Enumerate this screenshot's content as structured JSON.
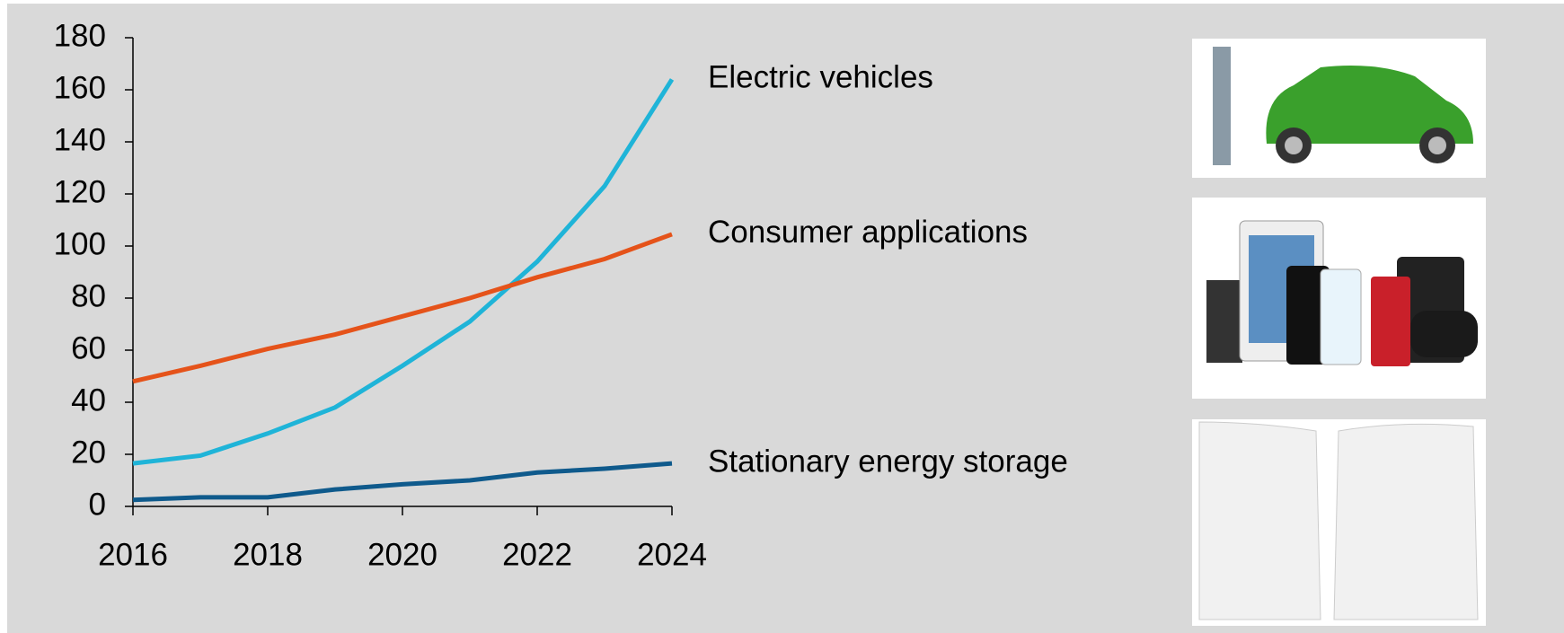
{
  "chart_data": {
    "type": "line",
    "x": [
      2016,
      2017,
      2018,
      2019,
      2020,
      2021,
      2022,
      2023,
      2024
    ],
    "series": [
      {
        "name": "Electric vehicles",
        "color": "#1fb4d8",
        "values": [
          16.5,
          19.5,
          28,
          38,
          54,
          71,
          94,
          123,
          164
        ]
      },
      {
        "name": "Consumer applications",
        "color": "#e5531a",
        "values": [
          48,
          54,
          60.5,
          66,
          73,
          80,
          88,
          95,
          104.5
        ]
      },
      {
        "name": "Stationary energy storage",
        "color": "#0f5a8c",
        "values": [
          2.5,
          3.5,
          3.5,
          6.5,
          8.5,
          10,
          13,
          14.5,
          16.5
        ]
      }
    ],
    "xlim": [
      2016,
      2024
    ],
    "xticks": [
      2016,
      2018,
      2020,
      2022,
      2024
    ],
    "ylim": [
      0,
      180
    ],
    "yticks": [
      0,
      20,
      40,
      60,
      80,
      100,
      120,
      140,
      160,
      180
    ]
  }
}
